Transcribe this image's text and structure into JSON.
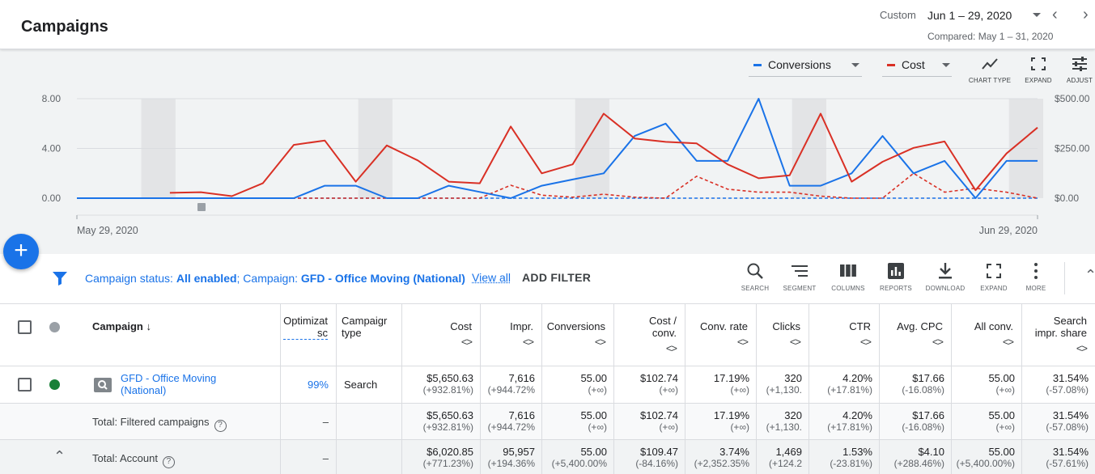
{
  "header": {
    "title": "Campaigns",
    "custom_label": "Custom",
    "date_range": "Jun 1 – 29, 2020",
    "compared": "Compared: May 1 – 31, 2020"
  },
  "chart_controls": {
    "metric1": "Conversions",
    "metric2": "Cost",
    "chart_type": "CHART TYPE",
    "expand": "EXPAND",
    "adjust": "ADJUST"
  },
  "colors": {
    "conversions": "#1a73e8",
    "cost": "#d93025",
    "accent": "#1a73e8"
  },
  "chart_data": {
    "type": "line",
    "y_left_ticks": [
      "8.00",
      "4.00",
      "0.00"
    ],
    "y_right_ticks": [
      "$500.00",
      "$250.00",
      "$0.00"
    ],
    "y_left_range": [
      0,
      8
    ],
    "y_right_range": [
      0,
      500
    ],
    "x_start_label": "May 29, 2020",
    "x_end_label": "Jun 29, 2020",
    "days": 31,
    "shaded_weekend_day_pairs": [
      [
        2,
        3
      ],
      [
        9,
        10
      ],
      [
        16,
        17
      ],
      [
        23,
        24
      ],
      [
        30,
        31
      ]
    ],
    "series": [
      {
        "name": "Conversions",
        "axis": "left",
        "x_start": 0,
        "values": [
          0,
          0,
          0,
          0,
          0,
          0,
          0,
          0,
          1,
          1,
          0,
          0,
          1,
          0.5,
          0,
          1,
          1.5,
          2,
          5,
          6,
          3,
          3,
          8,
          1,
          1,
          2,
          5,
          2,
          3,
          0,
          3,
          3
        ]
      },
      {
        "name": "Cost",
        "axis": "right",
        "x_start": 3,
        "values": [
          27,
          30,
          10,
          75,
          268,
          290,
          83,
          265,
          190,
          83,
          75,
          360,
          125,
          170,
          425,
          300,
          283,
          275,
          170,
          100,
          115,
          425,
          83,
          183,
          253,
          285,
          40,
          225,
          355
        ]
      },
      {
        "name": "Conversions (comparison)",
        "axis": "left",
        "dashed": true,
        "x_start": 0,
        "values": [
          0,
          0,
          0,
          0,
          0,
          0,
          0,
          0,
          0,
          0,
          0,
          0,
          0,
          0,
          0,
          0,
          0,
          0,
          0,
          0,
          0,
          0,
          0,
          0,
          0,
          0,
          0,
          0,
          0,
          0,
          0,
          0
        ]
      },
      {
        "name": "Cost (comparison)",
        "axis": "right",
        "dashed": true,
        "x_start": 0,
        "values": [
          0,
          0,
          0,
          0,
          0,
          0,
          0,
          0,
          0,
          0,
          0,
          0,
          0,
          0,
          65,
          15,
          5,
          20,
          5,
          0,
          110,
          45,
          30,
          30,
          10,
          0,
          0,
          125,
          30,
          50,
          30,
          0
        ]
      }
    ]
  },
  "filter_bar": {
    "status_prefix": "Campaign status: ",
    "status_value": "All enabled",
    "campaign_prefix": "; Campaign: ",
    "campaign_value": "GFD - Office Moving (National)",
    "view_all": "View all",
    "add_filter": "ADD FILTER",
    "tools": [
      "SEARCH",
      "SEGMENT",
      "COLUMNS",
      "REPORTS",
      "DOWNLOAD",
      "EXPAND",
      "MORE"
    ]
  },
  "table": {
    "headers": {
      "campaign": "Campaign",
      "optimization": [
        "Optimizat",
        "sc"
      ],
      "campaign_type": [
        "Campaigr",
        "type"
      ],
      "cost": "Cost",
      "impr": "Impr.",
      "conversions": "Conversions",
      "cost_conv": [
        "Cost /",
        "conv."
      ],
      "conv_rate": "Conv. rate",
      "clicks": "Clicks",
      "ctr": "CTR",
      "avg_cpc": "Avg. CPC",
      "all_conv": "All conv.",
      "search_impr_share": [
        "Search",
        "impr. share"
      ],
      "sort_arrows": "<>"
    },
    "rows": [
      {
        "name": [
          "GFD - Office Moving",
          "(National)"
        ],
        "optimization": "99%",
        "type": "Search",
        "values": [
          [
            "$5,650.63",
            "(+932.81%)"
          ],
          [
            "7,616",
            "(+944.72%"
          ],
          [
            "55.00",
            "(+∞)"
          ],
          [
            "$102.74",
            "(+∞)"
          ],
          [
            "17.19%",
            "(+∞)"
          ],
          [
            "320",
            "(+1,130."
          ],
          [
            "4.20%",
            "(+17.81%)"
          ],
          [
            "$17.66",
            "(-16.08%)"
          ],
          [
            "55.00",
            "(+∞)"
          ],
          [
            "31.54%",
            "(-57.08%)"
          ]
        ]
      },
      {
        "name": "Total: Filtered campaigns",
        "optimization": "–",
        "type": "",
        "values": [
          [
            "$5,650.63",
            "(+932.81%)"
          ],
          [
            "7,616",
            "(+944.72%"
          ],
          [
            "55.00",
            "(+∞)"
          ],
          [
            "$102.74",
            "(+∞)"
          ],
          [
            "17.19%",
            "(+∞)"
          ],
          [
            "320",
            "(+1,130."
          ],
          [
            "4.20%",
            "(+17.81%)"
          ],
          [
            "$17.66",
            "(-16.08%)"
          ],
          [
            "55.00",
            "(+∞)"
          ],
          [
            "31.54%",
            "(-57.08%)"
          ]
        ]
      },
      {
        "name": "Total: Account",
        "optimization": "–",
        "type": "",
        "values": [
          [
            "$6,020.85",
            "(+771.23%)"
          ],
          [
            "95,957",
            "(+194.36%"
          ],
          [
            "55.00",
            "(+5,400.00%"
          ],
          [
            "$109.47",
            "(-84.16%)"
          ],
          [
            "3.74%",
            "(+2,352.35%"
          ],
          [
            "1,469",
            "(+124.2"
          ],
          [
            "1.53%",
            "(-23.81%)"
          ],
          [
            "$4.10",
            "(+288.46%)"
          ],
          [
            "55.00",
            "(+5,400.00%)"
          ],
          [
            "31.54%",
            "(-57.61%)"
          ]
        ]
      }
    ]
  }
}
